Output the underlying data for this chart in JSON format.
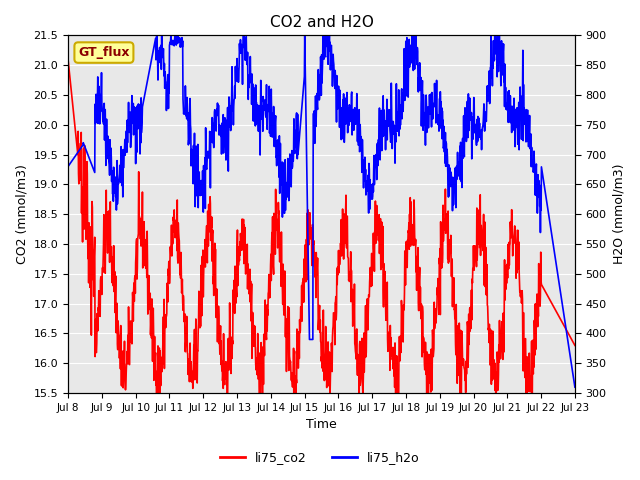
{
  "title": "CO2 and H2O",
  "xlabel": "Time",
  "ylabel_left": "CO2 (mmol/m3)",
  "ylabel_right": "H2O (mmol/m3)",
  "ylim_left": [
    15.5,
    21.5
  ],
  "ylim_right": [
    300,
    900
  ],
  "xtick_labels": [
    "Jul 8",
    "Jul 9",
    "Jul 10",
    "Jul 11",
    "Jul 12",
    "Jul 13",
    "Jul 14",
    "Jul 15",
    "Jul 16",
    "Jul 17",
    "Jul 18",
    "Jul 19",
    "Jul 20",
    "Jul 21",
    "Jul 22",
    "Jul 23"
  ],
  "yticks_left": [
    15.5,
    16.0,
    16.5,
    17.0,
    17.5,
    18.0,
    18.5,
    19.0,
    19.5,
    20.0,
    20.5,
    21.0,
    21.5
  ],
  "yticks_right": [
    300,
    350,
    400,
    450,
    500,
    550,
    600,
    650,
    700,
    750,
    800,
    850,
    900
  ],
  "co2_color": "#FF0000",
  "h2o_color": "#0000FF",
  "background_color": "#E8E8E8",
  "legend_label_co2": "li75_co2",
  "legend_label_h2o": "li75_h2o",
  "annotation_text": "GT_flux",
  "annotation_bg": "#FFFF99",
  "annotation_border": "#CCAA00",
  "line_width": 1.2
}
